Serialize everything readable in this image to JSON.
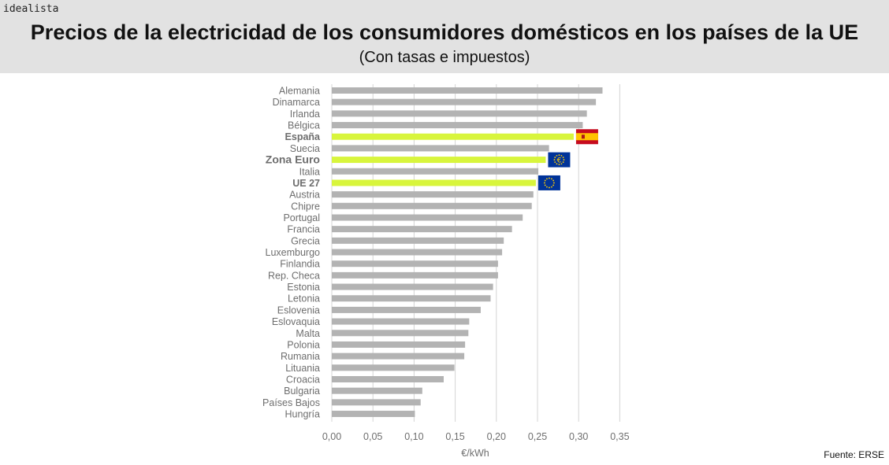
{
  "brand": "idealista",
  "title": "Precios de la electricidad de los consumidores domésticos en los países de la UE",
  "subtitle": "(Con tasas e impuestos)",
  "source": "Fuente: ERSE",
  "colors": {
    "bar": "#b3b3b3",
    "highlight": "#d8f53c",
    "grid": "#d4d4d4",
    "label": "#6e6e6e",
    "header_bg": "#e2e2e2"
  },
  "chart_data": {
    "type": "bar",
    "orientation": "horizontal",
    "xlabel": "€/kWh",
    "xlim": [
      0,
      0.35
    ],
    "xticks": [
      "0,00",
      "0,05",
      "0,10",
      "0,15",
      "0,20",
      "0,25",
      "0,30",
      "0,35"
    ],
    "grid": true,
    "categories": [
      "Alemania",
      "Dinamarca",
      "Irlanda",
      "Bélgica",
      "España",
      "Suecia",
      "Zona Euro",
      "Italia",
      "UE 27",
      "Austria",
      "Chipre",
      "Portugal",
      "Francia",
      "Grecia",
      "Luxemburgo",
      "Finlandia",
      "Rep. Checa",
      "Estonia",
      "Letonia",
      "Eslovenia",
      "Eslovaquia",
      "Malta",
      "Polonia",
      "Rumania",
      "Lituania",
      "Croacia",
      "Bulgaria",
      "Países Bajos",
      "Hungría"
    ],
    "values": [
      0.329,
      0.321,
      0.31,
      0.305,
      0.294,
      0.264,
      0.26,
      0.251,
      0.248,
      0.245,
      0.243,
      0.232,
      0.219,
      0.209,
      0.207,
      0.202,
      0.202,
      0.196,
      0.193,
      0.181,
      0.167,
      0.166,
      0.162,
      0.161,
      0.149,
      0.136,
      0.11,
      0.108,
      0.101
    ],
    "highlighted": [
      "España",
      "Zona Euro",
      "UE 27"
    ],
    "flags": {
      "España": "spain-flag",
      "Zona Euro": "eurozone-flag",
      "UE 27": "eu-flag"
    }
  }
}
